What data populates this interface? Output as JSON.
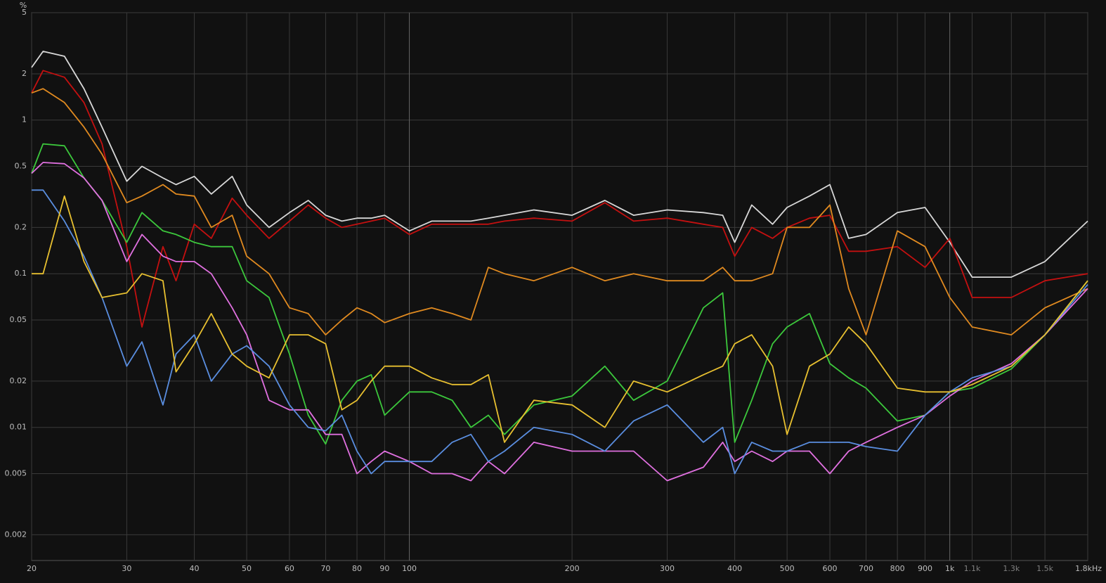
{
  "chart_data": {
    "type": "line",
    "ylabel": "%",
    "xscale": "log",
    "yscale": "log",
    "grid": true,
    "xlim": [
      20,
      1800
    ],
    "ylim": [
      0.00136,
      5
    ],
    "xticks": [
      20,
      30,
      40,
      50,
      60,
      70,
      80,
      90,
      100,
      200,
      300,
      400,
      500,
      600,
      700,
      800,
      900,
      {
        "value": 1000,
        "label": "1k"
      },
      {
        "value": 1100,
        "label": "1.1k"
      },
      {
        "value": 1300,
        "label": "1.3k"
      },
      {
        "value": 1500,
        "label": "1.5k"
      },
      {
        "value": 1800,
        "label": "1.8kHz"
      }
    ],
    "yticks": [
      5,
      2,
      1,
      0.5,
      0.2,
      0.1,
      0.05,
      0.02,
      0.01,
      0.005,
      0.002
    ],
    "x": [
      20,
      21,
      23,
      25,
      27,
      30,
      32,
      35,
      37,
      40,
      43,
      47,
      50,
      55,
      60,
      65,
      70,
      75,
      80,
      85,
      90,
      100,
      110,
      120,
      130,
      140,
      150,
      170,
      200,
      230,
      260,
      300,
      350,
      380,
      400,
      430,
      470,
      500,
      550,
      600,
      650,
      700,
      800,
      900,
      1000,
      1100,
      1300,
      1500,
      1800
    ],
    "series": [
      {
        "color": "#d8d8d8",
        "values": [
          2.2,
          2.8,
          2.6,
          1.6,
          0.9,
          0.4,
          0.5,
          0.42,
          0.38,
          0.43,
          0.33,
          0.43,
          0.28,
          0.2,
          0.25,
          0.3,
          0.24,
          0.22,
          0.23,
          0.23,
          0.24,
          0.19,
          0.22,
          0.22,
          0.22,
          0.23,
          0.24,
          0.26,
          0.24,
          0.3,
          0.24,
          0.26,
          0.25,
          0.24,
          0.16,
          0.28,
          0.21,
          0.27,
          0.32,
          0.38,
          0.17,
          0.18,
          0.25,
          0.27,
          0.16,
          0.095,
          0.095,
          0.12,
          0.22
        ]
      },
      {
        "color": "#c41010",
        "values": [
          1.5,
          2.1,
          1.9,
          1.3,
          0.7,
          0.15,
          0.045,
          0.15,
          0.09,
          0.21,
          0.17,
          0.31,
          0.24,
          0.17,
          0.22,
          0.28,
          0.23,
          0.2,
          0.21,
          0.22,
          0.23,
          0.18,
          0.21,
          0.21,
          0.21,
          0.21,
          0.22,
          0.23,
          0.22,
          0.29,
          0.22,
          0.23,
          0.21,
          0.2,
          0.13,
          0.2,
          0.17,
          0.2,
          0.23,
          0.24,
          0.14,
          0.14,
          0.15,
          0.11,
          0.17,
          0.07,
          0.07,
          0.09,
          0.1
        ]
      },
      {
        "color": "#e08a20",
        "values": [
          1.5,
          1.6,
          1.3,
          0.9,
          0.6,
          0.29,
          0.32,
          0.38,
          0.33,
          0.32,
          0.2,
          0.24,
          0.13,
          0.1,
          0.06,
          0.055,
          0.04,
          0.05,
          0.06,
          0.055,
          0.048,
          0.055,
          0.06,
          0.055,
          0.05,
          0.11,
          0.1,
          0.09,
          0.11,
          0.09,
          0.1,
          0.09,
          0.09,
          0.11,
          0.09,
          0.09,
          0.1,
          0.2,
          0.2,
          0.28,
          0.08,
          0.04,
          0.19,
          0.15,
          0.07,
          0.045,
          0.04,
          0.06,
          0.08
        ]
      },
      {
        "color": "#3cc83c",
        "values": [
          0.45,
          0.7,
          0.68,
          0.42,
          0.3,
          0.16,
          0.25,
          0.19,
          0.18,
          0.16,
          0.15,
          0.15,
          0.09,
          0.07,
          0.03,
          0.012,
          0.0078,
          0.015,
          0.02,
          0.022,
          0.012,
          0.017,
          0.017,
          0.015,
          0.01,
          0.012,
          0.009,
          0.014,
          0.016,
          0.025,
          0.015,
          0.02,
          0.06,
          0.075,
          0.008,
          0.015,
          0.035,
          0.045,
          0.055,
          0.026,
          0.021,
          0.018,
          0.011,
          0.012,
          0.017,
          0.018,
          0.024,
          0.04,
          0.09
        ]
      },
      {
        "color": "#e070e0",
        "values": [
          0.45,
          0.53,
          0.52,
          0.42,
          0.3,
          0.12,
          0.18,
          0.13,
          0.12,
          0.12,
          0.1,
          0.06,
          0.04,
          0.015,
          0.013,
          0.013,
          0.009,
          0.009,
          0.005,
          0.006,
          0.007,
          0.006,
          0.005,
          0.005,
          0.0045,
          0.006,
          0.005,
          0.008,
          0.007,
          0.007,
          0.007,
          0.0045,
          0.0055,
          0.008,
          0.006,
          0.007,
          0.006,
          0.007,
          0.007,
          0.005,
          0.007,
          0.008,
          0.01,
          0.012,
          0.016,
          0.02,
          0.026,
          0.04,
          0.08
        ]
      },
      {
        "color": "#5a8ee0",
        "values": [
          0.35,
          0.35,
          0.22,
          0.13,
          0.07,
          0.025,
          0.036,
          0.014,
          0.03,
          0.04,
          0.02,
          0.03,
          0.034,
          0.025,
          0.014,
          0.01,
          0.0095,
          0.012,
          0.007,
          0.005,
          0.006,
          0.006,
          0.006,
          0.008,
          0.009,
          0.006,
          0.007,
          0.01,
          0.009,
          0.007,
          0.011,
          0.014,
          0.008,
          0.01,
          0.005,
          0.008,
          0.007,
          0.007,
          0.008,
          0.008,
          0.008,
          0.0075,
          0.007,
          0.012,
          0.017,
          0.021,
          0.025,
          0.04,
          0.085
        ]
      },
      {
        "color": "#e8c030",
        "values": [
          0.1,
          0.1,
          0.32,
          0.12,
          0.07,
          0.075,
          0.1,
          0.09,
          0.023,
          0.035,
          0.055,
          0.03,
          0.025,
          0.021,
          0.04,
          0.04,
          0.035,
          0.013,
          0.015,
          0.02,
          0.025,
          0.025,
          0.021,
          0.019,
          0.019,
          0.022,
          0.008,
          0.015,
          0.014,
          0.01,
          0.02,
          0.017,
          0.022,
          0.025,
          0.035,
          0.04,
          0.025,
          0.009,
          0.025,
          0.03,
          0.045,
          0.035,
          0.018,
          0.017,
          0.017,
          0.019,
          0.025,
          0.04,
          0.09
        ]
      }
    ]
  }
}
